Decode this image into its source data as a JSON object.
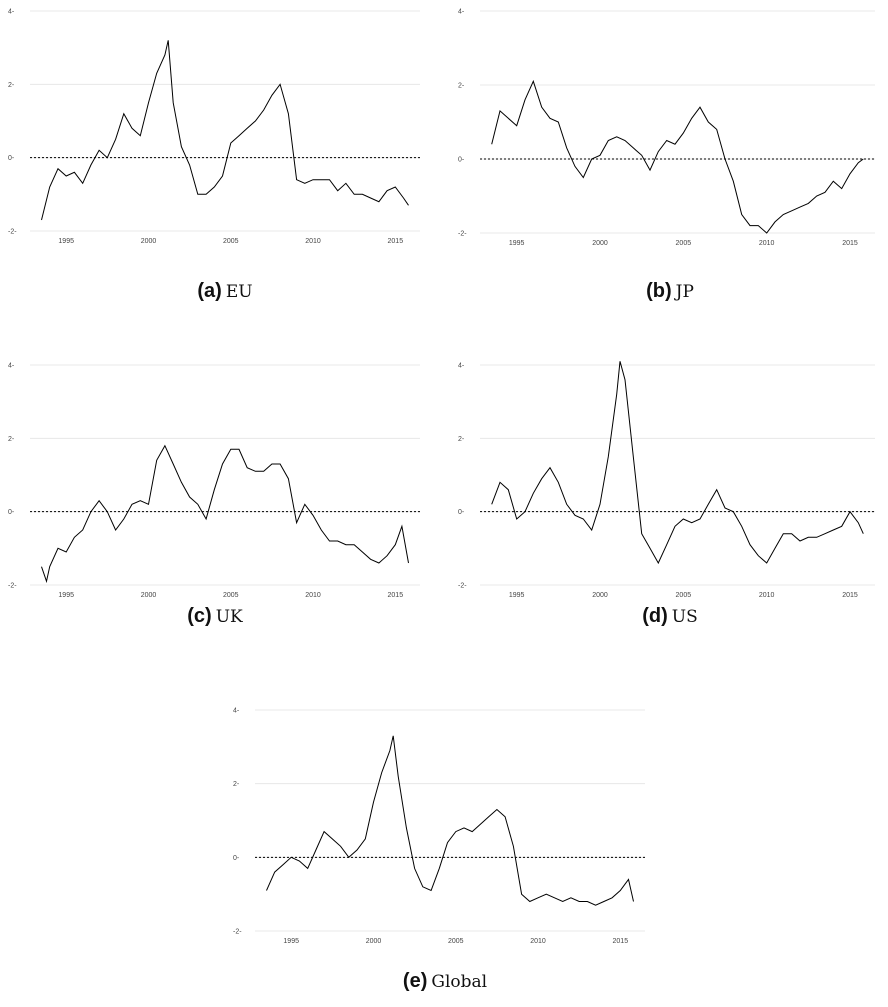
{
  "chart_data": [
    {
      "type": "line",
      "caption_letter": "(a)",
      "caption_name": "EU",
      "ylim": [
        -2,
        4
      ],
      "y_ticks": [
        4,
        2,
        0,
        -2
      ],
      "x_ticks": [
        1995,
        2000,
        2005,
        2010,
        2015
      ],
      "xlim": [
        1992.8,
        2016.5
      ],
      "reference_line": 0,
      "x": [
        1993.5,
        1994,
        1994.5,
        1995,
        1995.5,
        1996,
        1996.5,
        1997,
        1997.5,
        1998,
        1998.5,
        1999,
        1999.5,
        2000,
        2000.5,
        2001,
        2001.2,
        2001.5,
        2002,
        2002.5,
        2003,
        2003.5,
        2004,
        2004.5,
        2005,
        2005.5,
        2006,
        2006.5,
        2007,
        2007.5,
        2008,
        2008.5,
        2009,
        2009.5,
        2010,
        2010.5,
        2011,
        2011.5,
        2012,
        2012.5,
        2013,
        2013.5,
        2014,
        2014.5,
        2015,
        2015.5,
        2015.8
      ],
      "y": [
        -1.7,
        -0.8,
        -0.3,
        -0.5,
        -0.4,
        -0.7,
        -0.2,
        0.2,
        0.0,
        0.5,
        1.2,
        0.8,
        0.6,
        1.5,
        2.3,
        2.8,
        3.2,
        1.5,
        0.3,
        -0.2,
        -1.0,
        -1.0,
        -0.8,
        -0.5,
        0.4,
        0.6,
        0.8,
        1.0,
        1.3,
        1.7,
        2.0,
        1.2,
        -0.6,
        -0.7,
        -0.6,
        -0.6,
        -0.6,
        -0.9,
        -0.7,
        -1.0,
        -1.0,
        -1.1,
        -1.2,
        -0.9,
        -0.8,
        -1.1,
        -1.3
      ]
    },
    {
      "type": "line",
      "caption_letter": "(b)",
      "caption_name": "JP",
      "ylim": [
        -2,
        4
      ],
      "y_ticks": [
        4,
        2,
        0,
        -2
      ],
      "x_ticks": [
        1995,
        2000,
        2005,
        2010,
        2015
      ],
      "xlim": [
        1992.8,
        2016.5
      ],
      "reference_line": 0,
      "x": [
        1993.5,
        1994,
        1994.5,
        1995,
        1995.5,
        1996,
        1996.5,
        1997,
        1997.5,
        1998,
        1998.5,
        1999,
        1999.5,
        2000,
        2000.5,
        2001,
        2001.5,
        2002,
        2002.5,
        2003,
        2003.5,
        2004,
        2004.5,
        2005,
        2005.5,
        2006,
        2006.5,
        2007,
        2007.5,
        2008,
        2008.5,
        2009,
        2009.5,
        2010,
        2010.5,
        2011,
        2011.5,
        2012,
        2012.5,
        2013,
        2013.5,
        2014,
        2014.5,
        2015,
        2015.5,
        2015.8
      ],
      "y": [
        0.4,
        1.3,
        1.1,
        0.9,
        1.6,
        2.1,
        1.4,
        1.1,
        1.0,
        0.3,
        -0.2,
        -0.5,
        0.0,
        0.1,
        0.5,
        0.6,
        0.5,
        0.3,
        0.1,
        -0.3,
        0.2,
        0.5,
        0.4,
        0.7,
        1.1,
        1.4,
        1.0,
        0.8,
        0.0,
        -0.6,
        -1.5,
        -1.8,
        -1.8,
        -2.0,
        -1.7,
        -1.5,
        -1.4,
        -1.3,
        -1.2,
        -1.0,
        -0.9,
        -0.6,
        -0.8,
        -0.4,
        -0.1,
        0.0
      ]
    },
    {
      "type": "line",
      "caption_letter": "(c)",
      "caption_name": "UK",
      "ylim": [
        -2,
        4
      ],
      "y_ticks": [
        4,
        2,
        0,
        -2
      ],
      "x_ticks": [
        1995,
        2000,
        2005,
        2010,
        2015
      ],
      "xlim": [
        1992.8,
        2016.5
      ],
      "reference_line": 0,
      "x": [
        1993.5,
        1993.8,
        1994,
        1994.5,
        1995,
        1995.5,
        1996,
        1996.5,
        1997,
        1997.5,
        1998,
        1998.5,
        1999,
        1999.5,
        2000,
        2000.5,
        2001,
        2001.5,
        2002,
        2002.5,
        2003,
        2003.5,
        2004,
        2004.5,
        2005,
        2005.5,
        2006,
        2006.5,
        2007,
        2007.5,
        2008,
        2008.5,
        2009,
        2009.5,
        2010,
        2010.5,
        2011,
        2011.5,
        2012,
        2012.5,
        2013,
        2013.5,
        2014,
        2014.5,
        2015,
        2015.4,
        2015.8
      ],
      "y": [
        -1.5,
        -1.9,
        -1.5,
        -1.0,
        -1.1,
        -0.7,
        -0.5,
        0.0,
        0.3,
        0.0,
        -0.5,
        -0.2,
        0.2,
        0.3,
        0.2,
        1.4,
        1.8,
        1.3,
        0.8,
        0.4,
        0.2,
        -0.2,
        0.6,
        1.3,
        1.7,
        1.7,
        1.2,
        1.1,
        1.1,
        1.3,
        1.3,
        0.9,
        -0.3,
        0.2,
        -0.1,
        -0.5,
        -0.8,
        -0.8,
        -0.9,
        -0.9,
        -1.1,
        -1.3,
        -1.4,
        -1.2,
        -0.9,
        -0.4,
        -1.4
      ]
    },
    {
      "type": "line",
      "caption_letter": "(d)",
      "caption_name": "US",
      "ylim": [
        -2,
        4
      ],
      "y_ticks": [
        4,
        2,
        0,
        -2
      ],
      "x_ticks": [
        1995,
        2000,
        2005,
        2010,
        2015
      ],
      "xlim": [
        1992.8,
        2016.5
      ],
      "reference_line": 0,
      "x": [
        1993.5,
        1994,
        1994.5,
        1995,
        1995.5,
        1996,
        1996.5,
        1997,
        1997.5,
        1998,
        1998.5,
        1999,
        1999.5,
        2000,
        2000.5,
        2001,
        2001.2,
        2001.5,
        2002,
        2002.5,
        2003,
        2003.5,
        2004,
        2004.5,
        2005,
        2005.5,
        2006,
        2006.5,
        2007,
        2007.5,
        2008,
        2008.5,
        2009,
        2009.5,
        2010,
        2010.5,
        2011,
        2011.5,
        2012,
        2012.5,
        2013,
        2013.5,
        2014,
        2014.5,
        2015,
        2015.5,
        2015.8
      ],
      "y": [
        0.2,
        0.8,
        0.6,
        -0.2,
        0.0,
        0.5,
        0.9,
        1.2,
        0.8,
        0.2,
        -0.1,
        -0.2,
        -0.5,
        0.2,
        1.5,
        3.2,
        4.1,
        3.6,
        1.5,
        -0.6,
        -1.0,
        -1.4,
        -0.9,
        -0.4,
        -0.2,
        -0.3,
        -0.2,
        0.2,
        0.6,
        0.1,
        0.0,
        -0.4,
        -0.9,
        -1.2,
        -1.4,
        -1.0,
        -0.6,
        -0.6,
        -0.8,
        -0.7,
        -0.7,
        -0.6,
        -0.5,
        -0.4,
        0.0,
        -0.3,
        -0.6
      ]
    },
    {
      "type": "line",
      "caption_letter": "(e)",
      "caption_name": "Global",
      "ylim": [
        -2,
        4
      ],
      "y_ticks": [
        4,
        2,
        0,
        -2
      ],
      "x_ticks": [
        1995,
        2000,
        2005,
        2010,
        2015
      ],
      "xlim": [
        1992.8,
        2016.5
      ],
      "reference_line": 0,
      "x": [
        1993.5,
        1994,
        1994.5,
        1995,
        1995.5,
        1996,
        1996.5,
        1997,
        1997.5,
        1998,
        1998.5,
        1999,
        1999.5,
        2000,
        2000.5,
        2001,
        2001.2,
        2001.5,
        2002,
        2002.5,
        2003,
        2003.5,
        2004,
        2004.5,
        2005,
        2005.5,
        2006,
        2006.5,
        2007,
        2007.5,
        2008,
        2008.5,
        2009,
        2009.5,
        2010,
        2010.5,
        2011,
        2011.5,
        2012,
        2012.5,
        2013,
        2013.5,
        2014,
        2014.5,
        2015,
        2015.5,
        2015.8
      ],
      "y": [
        -0.9,
        -0.4,
        -0.2,
        0.0,
        -0.1,
        -0.3,
        0.2,
        0.7,
        0.5,
        0.3,
        0.0,
        0.2,
        0.5,
        1.5,
        2.3,
        2.9,
        3.3,
        2.2,
        0.8,
        -0.3,
        -0.8,
        -0.9,
        -0.3,
        0.4,
        0.7,
        0.8,
        0.7,
        0.9,
        1.1,
        1.3,
        1.1,
        0.3,
        -1.0,
        -1.2,
        -1.1,
        -1.0,
        -1.1,
        -1.2,
        -1.1,
        -1.2,
        -1.2,
        -1.3,
        -1.2,
        -1.1,
        -0.9,
        -0.6,
        -1.2
      ]
    }
  ]
}
